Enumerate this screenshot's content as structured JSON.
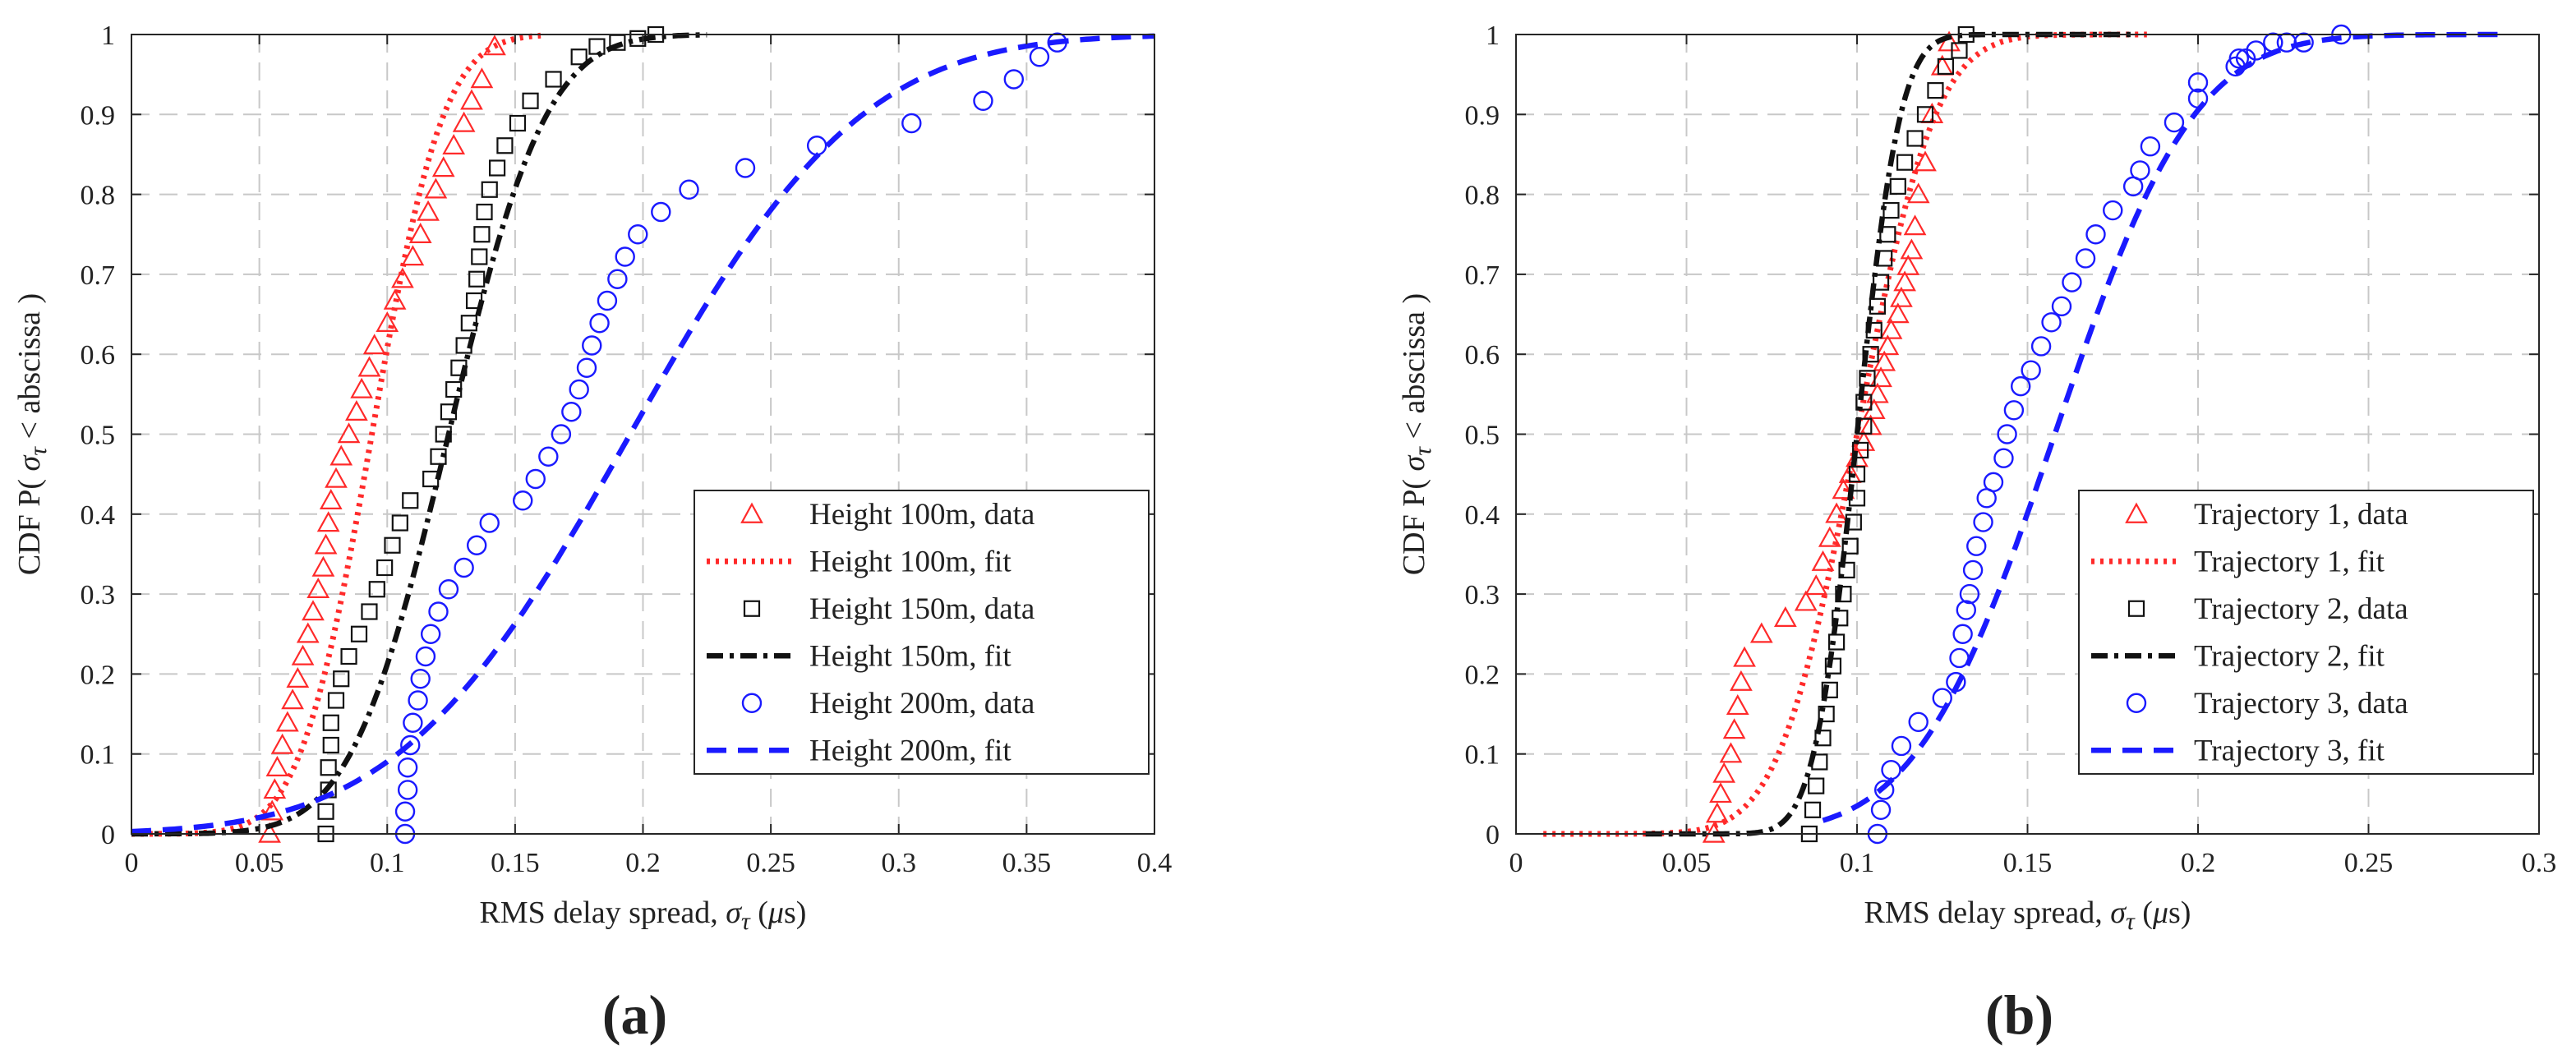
{
  "chart_data": [
    {
      "type": "line",
      "panel_label": "(a)",
      "xlabel": "RMS delay spread, σ_τ (μs)",
      "xlabel_parts": {
        "main": "RMS delay spread, ",
        "sym": "σ",
        "sub": "τ",
        "open": " (",
        "mu": "μ",
        "close": "s)"
      },
      "ylabel": "CDF P( σ_τ < abscissa )",
      "ylabel_parts": {
        "pre": "CDF P( ",
        "sym": "σ",
        "sub": "τ",
        "lt": " <",
        "post": " abscissa )"
      },
      "xlim": [
        0,
        0.4
      ],
      "ylim": [
        0,
        1
      ],
      "xticks": [
        0,
        0.05,
        0.1,
        0.15,
        0.2,
        0.25,
        0.3,
        0.35,
        0.4
      ],
      "xtick_labels": [
        "0",
        "0.05",
        "0.1",
        "0.15",
        "0.2",
        "0.25",
        "0.3",
        "0.35",
        "0.4"
      ],
      "yticks": [
        0,
        0.1,
        0.2,
        0.3,
        0.4,
        0.5,
        0.6,
        0.7,
        0.8,
        0.9,
        1
      ],
      "ytick_labels": [
        "0",
        "0.1",
        "0.2",
        "0.3",
        "0.4",
        "0.5",
        "0.6",
        "0.7",
        "0.8",
        "0.9",
        "1"
      ],
      "grid": true,
      "legend_position": "bottom-right",
      "series": [
        {
          "name": "Height 100m, data",
          "kind": "data",
          "marker": "triangle",
          "color": "#ff2a2a",
          "x": [
            0.054,
            0.055,
            0.056,
            0.057,
            0.059,
            0.061,
            0.063,
            0.065,
            0.067,
            0.069,
            0.071,
            0.073,
            0.075,
            0.076,
            0.077,
            0.078,
            0.08,
            0.082,
            0.085,
            0.088,
            0.09,
            0.093,
            0.095,
            0.1,
            0.103,
            0.106,
            0.11,
            0.113,
            0.116,
            0.119,
            0.122,
            0.126,
            0.13,
            0.133,
            0.137,
            0.142
          ],
          "y": [
            0.0,
            0.028,
            0.055,
            0.083,
            0.111,
            0.139,
            0.167,
            0.194,
            0.222,
            0.25,
            0.278,
            0.306,
            0.333,
            0.361,
            0.389,
            0.417,
            0.444,
            0.472,
            0.5,
            0.528,
            0.556,
            0.583,
            0.611,
            0.639,
            0.667,
            0.694,
            0.722,
            0.75,
            0.778,
            0.806,
            0.833,
            0.861,
            0.889,
            0.917,
            0.944,
            0.985
          ]
        },
        {
          "name": "Height 100m, fit",
          "kind": "fit",
          "style": "dotted",
          "color": "#ff2a2a",
          "cdf": "normal",
          "mu": 0.094,
          "sigma": 0.022,
          "x_range": [
            0,
            0.16
          ]
        },
        {
          "name": "Height 150m, data",
          "kind": "data",
          "marker": "square",
          "color": "#111111",
          "x": [
            0.076,
            0.076,
            0.077,
            0.077,
            0.078,
            0.078,
            0.08,
            0.082,
            0.085,
            0.089,
            0.093,
            0.096,
            0.099,
            0.102,
            0.105,
            0.109,
            0.117,
            0.12,
            0.122,
            0.124,
            0.126,
            0.128,
            0.13,
            0.132,
            0.134,
            0.135,
            0.136,
            0.137,
            0.138,
            0.14,
            0.143,
            0.146,
            0.151,
            0.156,
            0.165,
            0.175,
            0.182,
            0.19,
            0.198,
            0.205
          ],
          "y": [
            0.0,
            0.028,
            0.055,
            0.083,
            0.111,
            0.139,
            0.167,
            0.194,
            0.222,
            0.25,
            0.278,
            0.306,
            0.333,
            0.361,
            0.389,
            0.417,
            0.444,
            0.472,
            0.5,
            0.528,
            0.556,
            0.583,
            0.611,
            0.639,
            0.667,
            0.694,
            0.722,
            0.75,
            0.778,
            0.806,
            0.833,
            0.861,
            0.889,
            0.917,
            0.944,
            0.972,
            0.985,
            0.99,
            0.995,
            1.0
          ]
        },
        {
          "name": "Height 150m, fit",
          "kind": "fit",
          "style": "dashdot",
          "color": "#111111",
          "cdf": "normal",
          "mu": 0.124,
          "sigma": 0.03,
          "x_range": [
            0,
            0.225
          ]
        },
        {
          "name": "Height 200m, data",
          "kind": "data",
          "marker": "circle",
          "color": "#1a1aff",
          "x": [
            0.107,
            0.107,
            0.108,
            0.108,
            0.109,
            0.11,
            0.112,
            0.113,
            0.115,
            0.117,
            0.12,
            0.124,
            0.13,
            0.135,
            0.14,
            0.153,
            0.158,
            0.163,
            0.168,
            0.172,
            0.175,
            0.178,
            0.18,
            0.183,
            0.186,
            0.19,
            0.193,
            0.198,
            0.207,
            0.218,
            0.24,
            0.268,
            0.305,
            0.333,
            0.345,
            0.355,
            0.362
          ],
          "y": [
            0.0,
            0.028,
            0.055,
            0.083,
            0.111,
            0.139,
            0.167,
            0.194,
            0.222,
            0.25,
            0.278,
            0.306,
            0.333,
            0.361,
            0.389,
            0.417,
            0.444,
            0.472,
            0.5,
            0.528,
            0.556,
            0.583,
            0.611,
            0.639,
            0.667,
            0.694,
            0.722,
            0.75,
            0.778,
            0.806,
            0.833,
            0.861,
            0.889,
            0.917,
            0.944,
            0.972,
            0.99
          ]
        },
        {
          "name": "Height 200m, fit",
          "kind": "fit",
          "style": "dashed",
          "color": "#1a1aff",
          "cdf": "normal",
          "mu": 0.195,
          "sigma": 0.071,
          "x_range": [
            0,
            0.4
          ]
        }
      ]
    },
    {
      "type": "line",
      "panel_label": "(b)",
      "xlabel": "RMS delay spread, σ_τ (μs)",
      "xlabel_parts": {
        "main": "RMS delay spread, ",
        "sym": "σ",
        "sub": "τ",
        "open": " (",
        "mu": "μ",
        "close": "s)"
      },
      "ylabel": "CDF P( σ_τ < abscissa )",
      "ylabel_parts": {
        "pre": "CDF P( ",
        "sym": "σ",
        "sub": "τ",
        "lt": " <",
        "post": " abscissa )"
      },
      "xlim": [
        0,
        0.3
      ],
      "ylim": [
        0,
        1
      ],
      "xticks": [
        0,
        0.05,
        0.1,
        0.15,
        0.2,
        0.25,
        0.3
      ],
      "xtick_labels": [
        "0",
        "0.05",
        "0.1",
        "0.15",
        "0.2",
        "0.25",
        "0.3"
      ],
      "yticks": [
        0,
        0.1,
        0.2,
        0.3,
        0.4,
        0.5,
        0.6,
        0.7,
        0.8,
        0.9,
        1
      ],
      "ytick_labels": [
        "0",
        "0.1",
        "0.2",
        "0.3",
        "0.4",
        "0.5",
        "0.6",
        "0.7",
        "0.8",
        "0.9",
        "1"
      ],
      "grid": true,
      "legend_position": "bottom-right",
      "series": [
        {
          "name": "Trajectory 1, data",
          "kind": "data",
          "marker": "triangle",
          "color": "#ff2a2a",
          "x": [
            0.058,
            0.059,
            0.06,
            0.061,
            0.063,
            0.064,
            0.065,
            0.066,
            0.067,
            0.072,
            0.079,
            0.085,
            0.088,
            0.09,
            0.092,
            0.094,
            0.096,
            0.098,
            0.1,
            0.102,
            0.104,
            0.105,
            0.106,
            0.107,
            0.108,
            0.109,
            0.11,
            0.112,
            0.113,
            0.114,
            0.115,
            0.116,
            0.117,
            0.118,
            0.12,
            0.122,
            0.125,
            0.127
          ],
          "y": [
            0.0,
            0.025,
            0.05,
            0.075,
            0.1,
            0.13,
            0.16,
            0.19,
            0.22,
            0.25,
            0.27,
            0.29,
            0.31,
            0.34,
            0.37,
            0.4,
            0.43,
            0.45,
            0.47,
            0.49,
            0.51,
            0.53,
            0.55,
            0.57,
            0.59,
            0.61,
            0.63,
            0.65,
            0.67,
            0.69,
            0.71,
            0.73,
            0.76,
            0.8,
            0.84,
            0.9,
            0.96,
            0.99
          ]
        },
        {
          "name": "Trajectory 1, fit",
          "kind": "fit",
          "style": "dotted",
          "color": "#ff2a2a",
          "cdf": "normal",
          "mu": 0.1,
          "sigma": 0.018,
          "x_range": [
            0.008,
            0.185
          ]
        },
        {
          "name": "Trajectory 2, data",
          "kind": "data",
          "marker": "square",
          "color": "#111111",
          "x": [
            0.086,
            0.087,
            0.088,
            0.089,
            0.09,
            0.091,
            0.092,
            0.093,
            0.094,
            0.095,
            0.096,
            0.097,
            0.098,
            0.099,
            0.1,
            0.1,
            0.101,
            0.102,
            0.102,
            0.103,
            0.104,
            0.105,
            0.106,
            0.107,
            0.108,
            0.109,
            0.11,
            0.112,
            0.114,
            0.117,
            0.12,
            0.123,
            0.126,
            0.13,
            0.132
          ],
          "y": [
            0.0,
            0.03,
            0.06,
            0.09,
            0.12,
            0.15,
            0.18,
            0.21,
            0.24,
            0.27,
            0.3,
            0.33,
            0.36,
            0.39,
            0.42,
            0.45,
            0.48,
            0.51,
            0.54,
            0.57,
            0.6,
            0.63,
            0.66,
            0.69,
            0.72,
            0.75,
            0.78,
            0.81,
            0.84,
            0.87,
            0.9,
            0.93,
            0.96,
            0.98,
            1.0
          ]
        },
        {
          "name": "Trajectory 2, fit",
          "kind": "fit",
          "style": "dashdot",
          "color": "#111111",
          "cdf": "normal",
          "mu": 0.1,
          "sigma": 0.01,
          "x_range": [
            0.038,
            0.182
          ]
        },
        {
          "name": "Trajectory 3, data",
          "kind": "data",
          "marker": "circle",
          "color": "#1a1aff",
          "x": [
            0.106,
            0.107,
            0.108,
            0.11,
            0.113,
            0.118,
            0.125,
            0.129,
            0.13,
            0.131,
            0.132,
            0.133,
            0.134,
            0.135,
            0.137,
            0.138,
            0.14,
            0.143,
            0.144,
            0.146,
            0.148,
            0.151,
            0.154,
            0.157,
            0.16,
            0.163,
            0.167,
            0.17,
            0.175,
            0.181,
            0.183,
            0.186,
            0.193,
            0.2,
            0.2,
            0.211,
            0.212,
            0.214,
            0.217,
            0.222,
            0.226,
            0.231,
            0.242
          ],
          "y": [
            0.0,
            0.03,
            0.055,
            0.08,
            0.11,
            0.14,
            0.17,
            0.19,
            0.22,
            0.25,
            0.28,
            0.3,
            0.33,
            0.36,
            0.39,
            0.42,
            0.44,
            0.47,
            0.5,
            0.53,
            0.56,
            0.58,
            0.61,
            0.64,
            0.66,
            0.69,
            0.72,
            0.75,
            0.78,
            0.81,
            0.83,
            0.86,
            0.89,
            0.92,
            0.94,
            0.96,
            0.97,
            0.97,
            0.98,
            0.99,
            0.99,
            0.99,
            1.0
          ]
        },
        {
          "name": "Trajectory 3, fit",
          "kind": "fit",
          "style": "dashed",
          "color": "#1a1aff",
          "cdf": "normal",
          "mu": 0.158,
          "sigma": 0.032,
          "x_range": [
            0.09,
            0.29
          ]
        }
      ]
    }
  ]
}
